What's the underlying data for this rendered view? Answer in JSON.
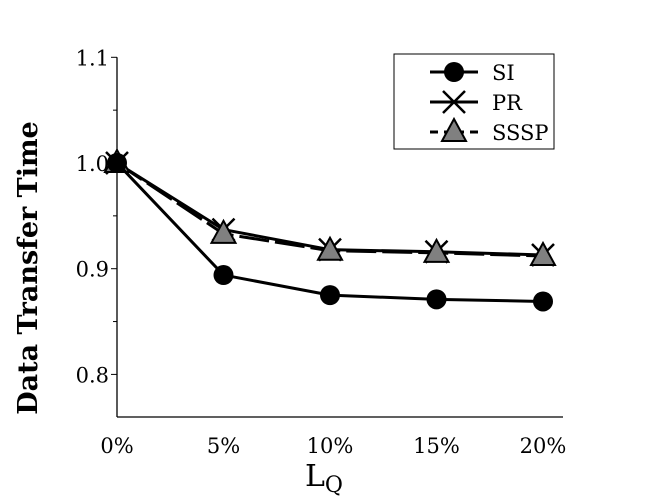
{
  "chart_data": {
    "type": "line",
    "title": "",
    "xlabel": "L",
    "xlabel_sub": "Q",
    "ylabel": "Data Transfer Time",
    "categories": [
      "0%",
      "5%",
      "10%",
      "15%",
      "20%"
    ],
    "ylim": [
      0.76,
      1.1
    ],
    "yticks": [
      0.8,
      0.9,
      1.0,
      1.1
    ],
    "ytick_labels": [
      "0.8",
      "0.9",
      "1.0",
      "1.1"
    ],
    "grid": false,
    "legend_position": "top-right",
    "series": [
      {
        "name": "SI",
        "marker": "circle",
        "values": [
          1.0,
          0.894,
          0.875,
          0.871,
          0.869
        ]
      },
      {
        "name": "PR",
        "marker": "x",
        "values": [
          1.0,
          0.937,
          0.918,
          0.916,
          0.913
        ]
      },
      {
        "name": "SSSP",
        "marker": "triangle",
        "values": [
          1.0,
          0.933,
          0.917,
          0.915,
          0.912
        ]
      }
    ],
    "colors": {
      "line": "#000000",
      "triangle_fill": "#808080"
    }
  }
}
